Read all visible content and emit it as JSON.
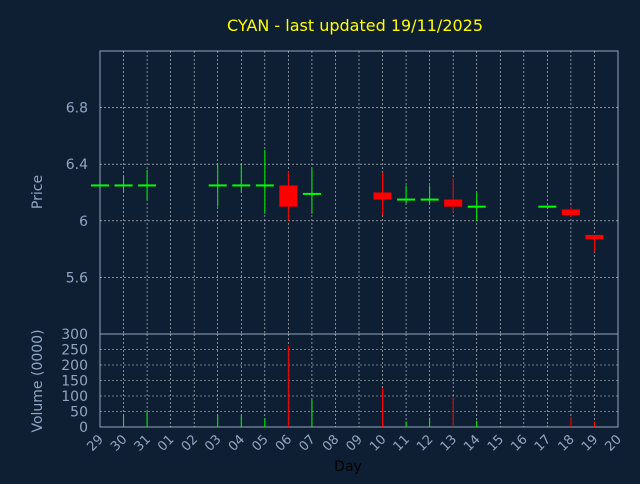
{
  "colors": {
    "background": "#0f1f33",
    "title": "#ffff00",
    "axis_text": "#8fa6c2",
    "xlabel": "#000000",
    "up": "#00ff00",
    "down": "#ff0000",
    "grid": "#ffffff"
  },
  "chart_data": [
    {
      "type": "candlestick",
      "title": "CYAN - last updated 19/11/2025",
      "xlabel": "Day",
      "ylabel": "Price",
      "ylim": [
        5.2,
        7.2
      ],
      "yticks": [
        5.6,
        6,
        6.4,
        6.8
      ],
      "ytick_labels": [
        "5.6",
        "6",
        "6.4",
        "6.8"
      ],
      "grid": true,
      "categories": [
        "29",
        "30",
        "31",
        "01",
        "02",
        "03",
        "04",
        "05",
        "06",
        "07",
        "08",
        "09",
        "10",
        "11",
        "12",
        "13",
        "14",
        "15",
        "16",
        "17",
        "18",
        "19",
        "20"
      ],
      "candles": [
        {
          "day": "29",
          "open": 6.25,
          "high": 6.25,
          "low": 6.25,
          "close": 6.25
        },
        {
          "day": "30",
          "open": 6.25,
          "high": 6.32,
          "low": 6.2,
          "close": 6.25
        },
        {
          "day": "31",
          "open": 6.25,
          "high": 6.36,
          "low": 6.15,
          "close": 6.25
        },
        {
          "day": "03",
          "open": 6.25,
          "high": 6.4,
          "low": 6.1,
          "close": 6.25
        },
        {
          "day": "04",
          "open": 6.25,
          "high": 6.4,
          "low": 6.2,
          "close": 6.25
        },
        {
          "day": "05",
          "open": 6.25,
          "high": 6.5,
          "low": 6.05,
          "close": 6.25
        },
        {
          "day": "06",
          "open": 6.25,
          "high": 6.35,
          "low": 6.0,
          "close": 6.1
        },
        {
          "day": "07",
          "open": 6.19,
          "high": 6.37,
          "low": 6.05,
          "close": 6.19
        },
        {
          "day": "10",
          "open": 6.2,
          "high": 6.34,
          "low": 6.04,
          "close": 6.15
        },
        {
          "day": "11",
          "open": 6.15,
          "high": 6.25,
          "low": 6.12,
          "close": 6.15
        },
        {
          "day": "12",
          "open": 6.15,
          "high": 6.25,
          "low": 6.12,
          "close": 6.15
        },
        {
          "day": "13",
          "open": 6.15,
          "high": 6.3,
          "low": 6.06,
          "close": 6.1
        },
        {
          "day": "14",
          "open": 6.1,
          "high": 6.2,
          "low": 6.0,
          "close": 6.1
        },
        {
          "day": "17",
          "open": 6.1,
          "high": 6.1,
          "low": 6.1,
          "close": 6.1
        },
        {
          "day": "18",
          "open": 6.08,
          "high": 6.1,
          "low": 6.03,
          "close": 6.04
        },
        {
          "day": "19",
          "open": 5.9,
          "high": 5.9,
          "low": 5.78,
          "close": 5.87
        }
      ]
    },
    {
      "type": "bar",
      "ylabel": "Volume (0000)",
      "ylim": [
        0,
        300
      ],
      "yticks": [
        0,
        50,
        100,
        150,
        200,
        250,
        300
      ],
      "ytick_labels": [
        "0",
        "50",
        "100",
        "150",
        "200",
        "250",
        "300"
      ],
      "grid": true,
      "categories": [
        "29",
        "30",
        "31",
        "01",
        "02",
        "03",
        "04",
        "05",
        "06",
        "07",
        "08",
        "09",
        "10",
        "11",
        "12",
        "13",
        "14",
        "15",
        "16",
        "17",
        "18",
        "19",
        "20"
      ],
      "values": [
        {
          "day": "30",
          "value": 40,
          "direction": "up"
        },
        {
          "day": "31",
          "value": 52,
          "direction": "up"
        },
        {
          "day": "03",
          "value": 40,
          "direction": "up"
        },
        {
          "day": "04",
          "value": 38,
          "direction": "up"
        },
        {
          "day": "05",
          "value": 28,
          "direction": "up"
        },
        {
          "day": "06",
          "value": 262,
          "direction": "down"
        },
        {
          "day": "07",
          "value": 88,
          "direction": "up"
        },
        {
          "day": "10",
          "value": 125,
          "direction": "down"
        },
        {
          "day": "11",
          "value": 18,
          "direction": "up"
        },
        {
          "day": "12",
          "value": 30,
          "direction": "up"
        },
        {
          "day": "13",
          "value": 95,
          "direction": "down"
        },
        {
          "day": "14",
          "value": 20,
          "direction": "up"
        },
        {
          "day": "17",
          "value": 5,
          "direction": "up"
        },
        {
          "day": "18",
          "value": 32,
          "direction": "down"
        },
        {
          "day": "19",
          "value": 18,
          "direction": "down"
        }
      ]
    }
  ]
}
